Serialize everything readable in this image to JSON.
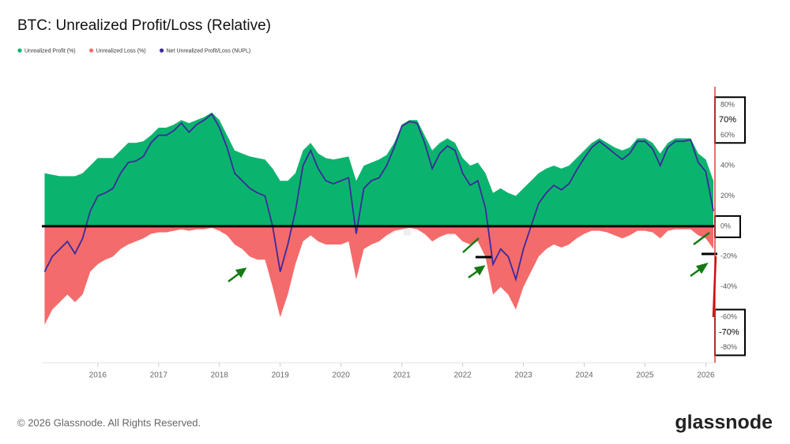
{
  "chart_data": {
    "type": "area",
    "title": "BTC: Unrealized Profit/Loss (Relative)",
    "footer": "© 2026 Glassnode. All Rights Reserved.",
    "logo": "glassnode",
    "watermark": "glassnode",
    "x": [
      2015.125,
      2015.25,
      2015.375,
      2015.5,
      2015.625,
      2015.75,
      2015.875,
      2016,
      2016.125,
      2016.25,
      2016.375,
      2016.5,
      2016.625,
      2016.75,
      2016.875,
      2017,
      2017.125,
      2017.25,
      2017.375,
      2017.5,
      2017.625,
      2017.75,
      2017.875,
      2018,
      2018.125,
      2018.25,
      2018.375,
      2018.5,
      2018.625,
      2018.75,
      2018.875,
      2019,
      2019.125,
      2019.25,
      2019.375,
      2019.5,
      2019.625,
      2019.75,
      2019.875,
      2020,
      2020.125,
      2020.25,
      2020.375,
      2020.5,
      2020.625,
      2020.75,
      2020.875,
      2021,
      2021.125,
      2021.25,
      2021.375,
      2021.5,
      2021.625,
      2021.75,
      2021.875,
      2022,
      2022.125,
      2022.25,
      2022.375,
      2022.5,
      2022.625,
      2022.75,
      2022.875,
      2023,
      2023.125,
      2023.25,
      2023.375,
      2023.5,
      2023.625,
      2023.75,
      2023.875,
      2024,
      2024.125,
      2024.25,
      2024.375,
      2024.5,
      2024.625,
      2024.75,
      2024.875,
      2025,
      2025.125,
      2025.25,
      2025.375,
      2025.5,
      2025.625,
      2025.75,
      2025.875,
      2026,
      2026.125
    ],
    "series": [
      {
        "name": "Unrealized Profit (%)",
        "color": "#0bb46e",
        "type": "area",
        "values": [
          35,
          34,
          33,
          33,
          33,
          35,
          40,
          45,
          45,
          45,
          50,
          55,
          55,
          56,
          60,
          65,
          65,
          67,
          70,
          68,
          70,
          72,
          75,
          70,
          60,
          50,
          48,
          46,
          45,
          44,
          38,
          30,
          30,
          35,
          50,
          55,
          48,
          45,
          44,
          45,
          46,
          30,
          40,
          42,
          44,
          47,
          55,
          67,
          70,
          70,
          60,
          50,
          55,
          58,
          55,
          45,
          40,
          42,
          35,
          22,
          25,
          22,
          20,
          25,
          30,
          35,
          38,
          40,
          38,
          40,
          45,
          50,
          55,
          58,
          55,
          52,
          50,
          52,
          58,
          58,
          55,
          48,
          55,
          58,
          58,
          58,
          48,
          44,
          30
        ]
      },
      {
        "name": "Unrealized Loss (%)",
        "color": "#f46b6b",
        "type": "area",
        "values": [
          -65,
          -55,
          -50,
          -45,
          -50,
          -45,
          -30,
          -25,
          -22,
          -20,
          -15,
          -12,
          -10,
          -8,
          -5,
          -4,
          -4,
          -3,
          -2,
          -3,
          -2,
          -2,
          -1,
          -3,
          -6,
          -12,
          -15,
          -20,
          -22,
          -22,
          -40,
          -60,
          -45,
          -25,
          -10,
          -6,
          -10,
          -12,
          -12,
          -12,
          -10,
          -35,
          -15,
          -12,
          -10,
          -6,
          -3,
          -2,
          -1,
          -2,
          -5,
          -10,
          -7,
          -5,
          -5,
          -10,
          -12,
          -10,
          -20,
          -45,
          -40,
          -45,
          -55,
          -40,
          -30,
          -20,
          -15,
          -12,
          -14,
          -12,
          -8,
          -5,
          -3,
          -3,
          -4,
          -6,
          -8,
          -6,
          -3,
          -3,
          -4,
          -8,
          -3,
          -2,
          -2,
          -2,
          -6,
          -8,
          -15
        ]
      },
      {
        "name": "Net Unrealized Profit/Loss (NUPL)",
        "color": "#3b2a9c",
        "type": "line",
        "values": [
          -30,
          -20,
          -15,
          -10,
          -18,
          -8,
          10,
          20,
          22,
          25,
          35,
          42,
          43,
          46,
          55,
          60,
          60,
          63,
          68,
          62,
          67,
          70,
          74,
          65,
          52,
          35,
          30,
          25,
          22,
          20,
          0,
          -30,
          -12,
          10,
          40,
          50,
          38,
          30,
          28,
          30,
          32,
          -5,
          25,
          30,
          32,
          40,
          52,
          66,
          69,
          68,
          55,
          38,
          48,
          53,
          50,
          35,
          27,
          30,
          12,
          -25,
          -15,
          -20,
          -35,
          -15,
          0,
          15,
          22,
          27,
          24,
          28,
          37,
          45,
          52,
          56,
          52,
          48,
          44,
          48,
          56,
          56,
          51,
          40,
          52,
          56,
          56,
          57,
          42,
          36,
          10
        ]
      }
    ],
    "xlim": [
      2015.08,
      2026.15
    ],
    "xticks": [
      2016,
      2017,
      2018,
      2019,
      2020,
      2021,
      2022,
      2023,
      2024,
      2025,
      2026
    ],
    "ylim": [
      -90,
      85
    ],
    "yticks": [
      {
        "value": 80,
        "label": "80%"
      },
      {
        "value": 60,
        "label": "60%"
      },
      {
        "value": 40,
        "label": "40%"
      },
      {
        "value": 20,
        "label": "20%"
      },
      {
        "value": 0,
        "label": "0%"
      },
      {
        "value": -20,
        "label": "-20%"
      },
      {
        "value": -40,
        "label": "-40%"
      },
      {
        "value": -60,
        "label": "-60%"
      },
      {
        "value": -80,
        "label": "-80%"
      }
    ],
    "grid": false,
    "annotations": [
      {
        "text": "70%",
        "value": 70
      },
      {
        "text": "-70%",
        "value": -70
      }
    ]
  }
}
